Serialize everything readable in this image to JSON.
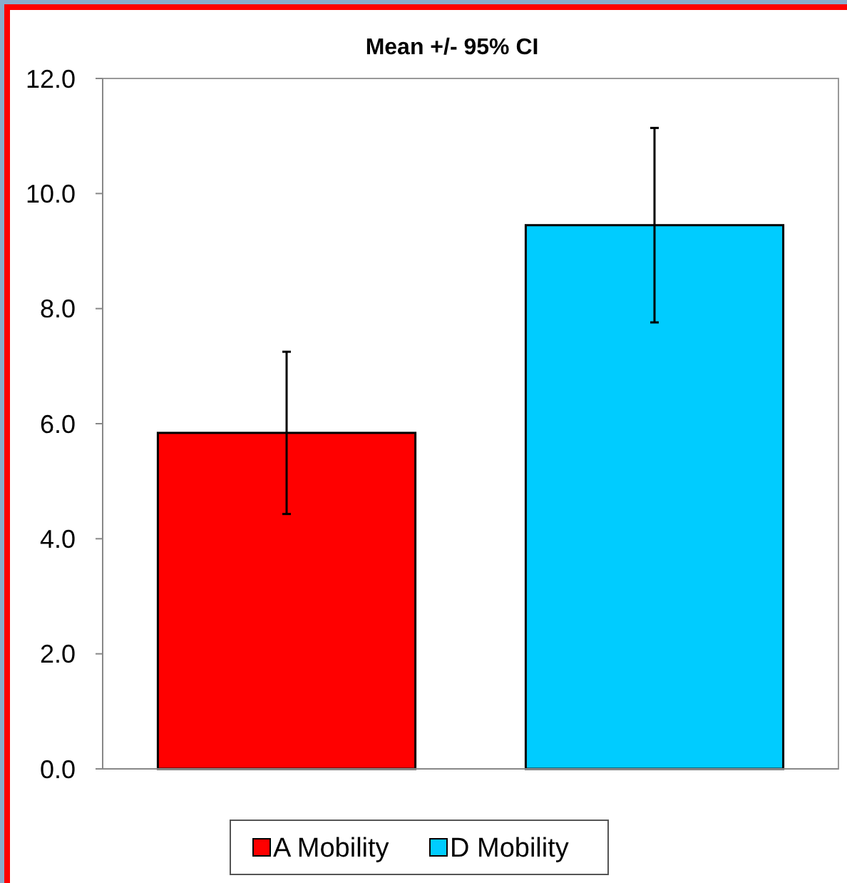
{
  "chart_data": {
    "type": "bar",
    "title": "Mean +/- 95%  CI",
    "categories": [
      null
    ],
    "series": [
      {
        "name": "A Mobility",
        "color": "#ff0000",
        "values": [
          5.84
        ],
        "errors": [
          1.41
        ]
      },
      {
        "name": "D Mobility",
        "color": "#00ccff",
        "values": [
          9.45
        ],
        "errors": [
          1.69
        ]
      }
    ],
    "ylim": [
      0,
      12
    ],
    "yticks": [
      {
        "value": 0,
        "label": "0.0"
      },
      {
        "value": 2,
        "label": "2.0"
      },
      {
        "value": 4,
        "label": "4.0"
      },
      {
        "value": 6,
        "label": "6.0"
      },
      {
        "value": 8,
        "label": "8.0"
      },
      {
        "value": 10,
        "label": "10.0"
      },
      {
        "value": 12,
        "label": "12.0"
      }
    ],
    "grid": false,
    "legend": "bottom"
  }
}
